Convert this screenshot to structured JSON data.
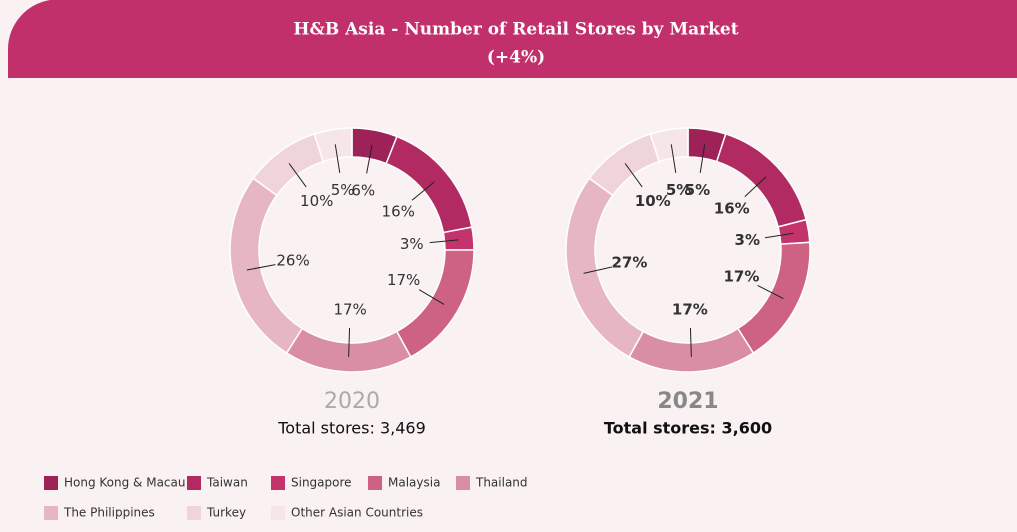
{
  "title": "H&B Asia - Number of Retail Stores by Market",
  "subtitle": "(+4%)",
  "chart_data": [
    {
      "type": "pie",
      "donut": true,
      "title": "2020",
      "subtitle": "Total stores: 3,469",
      "categories": [
        "Hong Kong & Macau",
        "Taiwan",
        "Singapore",
        "Malaysia",
        "Thailand",
        "The Philippines",
        "Turkey",
        "Other Asian Countries"
      ],
      "colors": [
        "#9c2257",
        "#b22a62",
        "#c3346d",
        "#cd6283",
        "#da8ea3",
        "#e6b7c3",
        "#f0d4db",
        "#f6e6ea"
      ],
      "values": [
        6,
        16,
        3,
        17,
        17,
        26,
        10,
        5
      ],
      "value_labels": [
        "6%",
        "16%",
        "3%",
        "17%",
        "17%",
        "26%",
        "10%",
        "5%"
      ]
    },
    {
      "type": "pie",
      "donut": true,
      "title": "2021",
      "subtitle": "Total stores: 3,600",
      "categories": [
        "Hong Kong & Macau",
        "Taiwan",
        "Singapore",
        "Malaysia",
        "Thailand",
        "The Philippines",
        "Turkey",
        "Other Asian Countries"
      ],
      "colors": [
        "#9c2257",
        "#b22a62",
        "#c3346d",
        "#cd6283",
        "#da8ea3",
        "#e6b7c3",
        "#f0d4db",
        "#f6e6ea"
      ],
      "values": [
        5,
        16,
        3,
        17,
        17,
        27,
        10,
        5
      ],
      "value_labels": [
        "5%",
        "16%",
        "3%",
        "17%",
        "17%",
        "27%",
        "10%",
        "5%"
      ]
    }
  ]
}
